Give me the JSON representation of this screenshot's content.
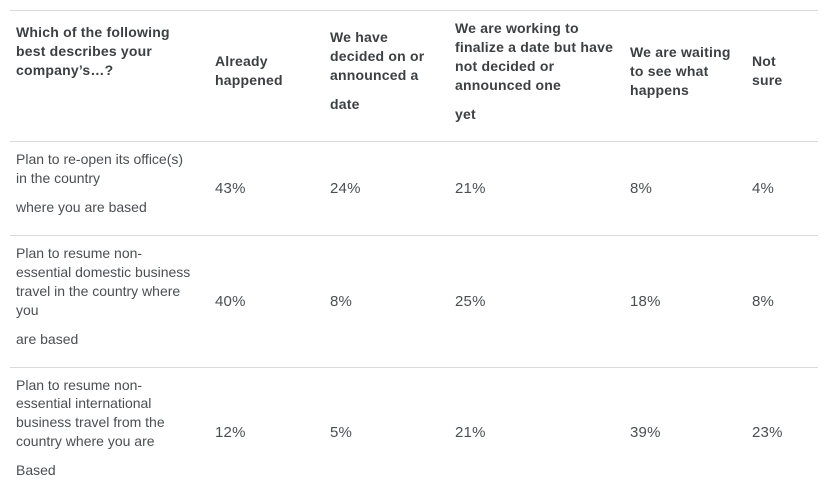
{
  "colors": {
    "background": "#ffffff",
    "header_text": "#3d4043",
    "body_text": "#4b4f53",
    "divider": "#d9dadb"
  },
  "table": {
    "header": {
      "cells": [
        {
          "key": "question",
          "paragraphs": [
            "Which of the following\nbest describes your\ncompany’s…?"
          ]
        },
        {
          "key": "already-happened",
          "paragraphs": [
            "Already\nhappened"
          ]
        },
        {
          "key": "decided-announced",
          "paragraphs": [
            "We have\ndecided on or\nannounced a",
            "date"
          ]
        },
        {
          "key": "working-to-finalize",
          "paragraphs": [
            "We are working to\nfinalize a date but have\nnot decided or\nannounced one",
            "yet"
          ]
        },
        {
          "key": "waiting-to-see",
          "paragraphs": [
            "We are waiting\nto see what\nhappens"
          ]
        },
        {
          "key": "not-sure",
          "paragraphs": [
            "Not\nsure"
          ]
        }
      ]
    },
    "rows": [
      {
        "label_paragraphs": [
          "Plan to re-open its office(s)\nin the country",
          "where you are based"
        ],
        "values": [
          "43%",
          "24%",
          "21%",
          "8%",
          "4%"
        ]
      },
      {
        "label_paragraphs": [
          "Plan to resume non-\nessential domestic business\ntravel in the country where\nyou",
          "are based"
        ],
        "values": [
          "40%",
          "8%",
          "25%",
          "18%",
          "8%"
        ]
      },
      {
        "label_paragraphs": [
          "Plan to resume non-\nessential international\nbusiness travel from the\ncountry where you are",
          "Based"
        ],
        "values": [
          "12%",
          "5%",
          "21%",
          "39%",
          "23%"
        ]
      }
    ]
  },
  "chart_data": {
    "type": "table",
    "title": "Which of the following best describes your company’s…?",
    "columns": [
      "Already happened",
      "We have decided on or announced a date",
      "We are working to finalize a date but have not decided or announced one yet",
      "We are waiting to see what happens",
      "Not sure"
    ],
    "unit": "%",
    "rows": [
      {
        "label": "Plan to re-open its office(s) in the country where you are based",
        "values": [
          43,
          24,
          21,
          8,
          4
        ]
      },
      {
        "label": "Plan to resume non-essential domestic business travel in the country where you are based",
        "values": [
          40,
          8,
          25,
          18,
          8
        ]
      },
      {
        "label": "Plan to resume non-essential international business travel from the country where you are Based",
        "values": [
          12,
          5,
          21,
          39,
          23
        ]
      }
    ]
  }
}
